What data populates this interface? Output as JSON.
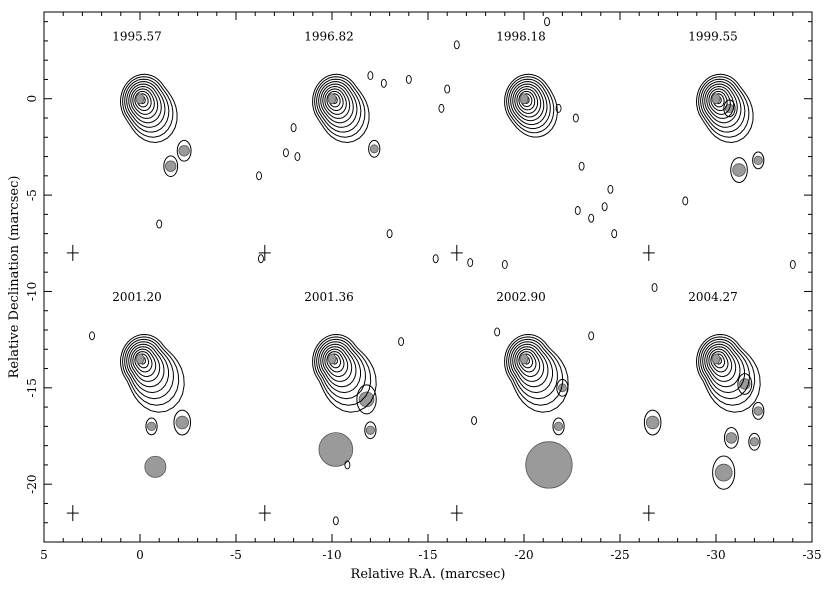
{
  "chart_data": {
    "type": "contour-map",
    "xlabel": "Relative R.A. (marcsec)",
    "ylabel": "Relative Declination (marcsec)",
    "xlim": [
      5,
      -35
    ],
    "ylim": [
      -23,
      4.5
    ],
    "xticks": [
      5,
      0,
      -5,
      -10,
      -15,
      -20,
      -25,
      -30,
      -35
    ],
    "yticks": [
      0,
      -5,
      -10,
      -15,
      -20
    ],
    "panels": [
      {
        "epoch": "1995.57",
        "core": [
          0,
          0
        ],
        "components": [
          {
            "ra": -1.6,
            "dec": -3.5,
            "size": 0.5
          },
          {
            "ra": -2.3,
            "dec": -2.7,
            "size": 0.5
          }
        ],
        "beam": null
      },
      {
        "epoch": "1996.82",
        "core": [
          -10,
          0
        ],
        "components": [
          {
            "ra": -12.2,
            "dec": -2.6,
            "size": 0.3
          }
        ],
        "beam": null
      },
      {
        "epoch": "1998.18",
        "core": [
          -20,
          0
        ],
        "components": [],
        "beam": null
      },
      {
        "epoch": "1999.55",
        "core": [
          -30,
          0
        ],
        "components": [
          {
            "ra": -30.7,
            "dec": -0.5,
            "size": 0.4
          },
          {
            "ra": -31.2,
            "dec": -3.7,
            "size": 0.6
          },
          {
            "ra": -32.2,
            "dec": -3.2,
            "size": 0.4
          }
        ],
        "beam": null
      },
      {
        "epoch": "2001.20",
        "core": [
          0,
          -13.5
        ],
        "components": [
          {
            "ra": -2.2,
            "dec": -16.8,
            "size": 0.6
          },
          {
            "ra": -0.6,
            "dec": -17.0,
            "size": 0.4
          },
          {
            "ra": -0.8,
            "dec": -19.1,
            "size": 1.0
          }
        ],
        "beam": null
      },
      {
        "epoch": "2001.36",
        "core": [
          -10,
          -13.5
        ],
        "components": [
          {
            "ra": -11.8,
            "dec": -15.6,
            "size": 0.7
          },
          {
            "ra": -12.0,
            "dec": -17.2,
            "size": 0.4
          },
          {
            "ra": -10.2,
            "dec": -18.2,
            "size": 1.6
          }
        ],
        "beam": null
      },
      {
        "epoch": "2002.90",
        "core": [
          -20,
          -13.5
        ],
        "components": [
          {
            "ra": -22.0,
            "dec": -15.0,
            "size": 0.3
          },
          {
            "ra": -21.8,
            "dec": -17.0,
            "size": 0.4
          },
          {
            "ra": -21.3,
            "dec": -19.0,
            "size": 2.2
          }
        ],
        "beam": null
      },
      {
        "epoch": "2004.27",
        "core": [
          -30,
          -13.5
        ],
        "components": [
          {
            "ra": -31.5,
            "dec": -14.8,
            "size": 0.5
          },
          {
            "ra": -32.2,
            "dec": -16.2,
            "size": 0.4
          },
          {
            "ra": -30.8,
            "dec": -17.6,
            "size": 0.5
          },
          {
            "ra": -32.0,
            "dec": -17.8,
            "size": 0.4
          },
          {
            "ra": -26.7,
            "dec": -16.8,
            "size": 0.6
          },
          {
            "ra": -30.4,
            "dec": -19.4,
            "size": 0.8
          }
        ],
        "beam": null
      }
    ]
  }
}
